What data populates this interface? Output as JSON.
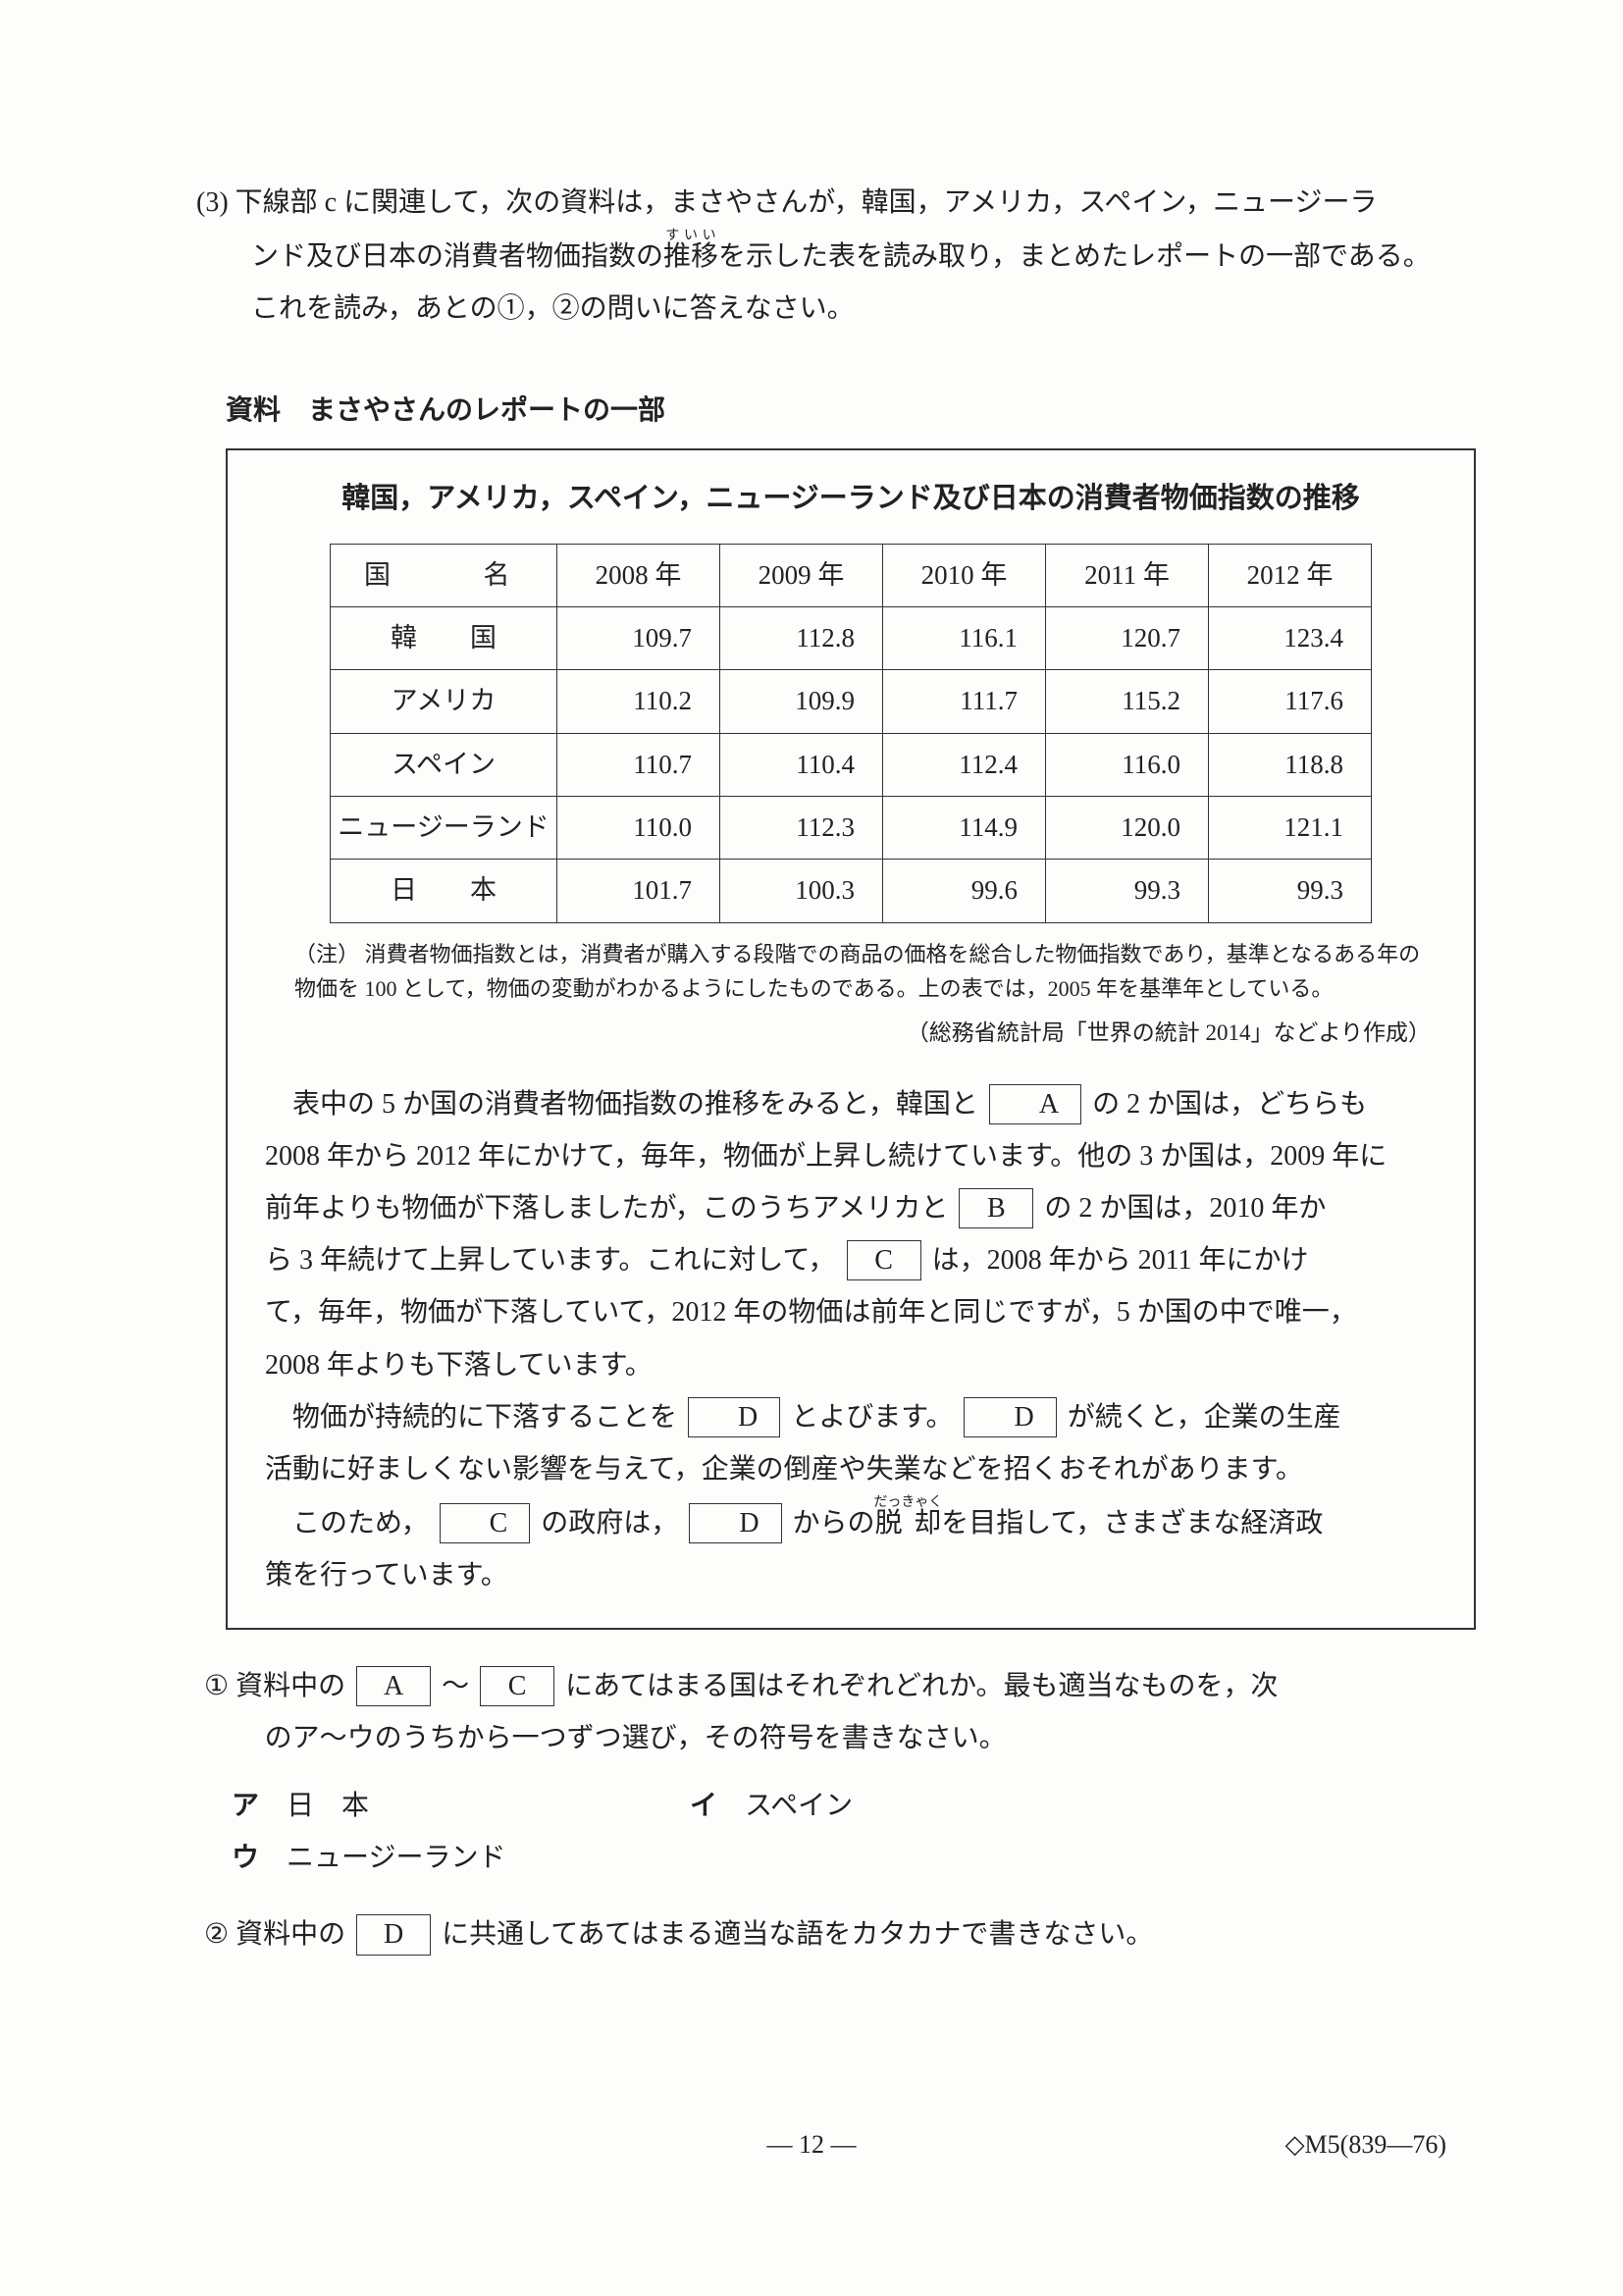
{
  "question": {
    "number": "(3)",
    "line1": "下線部 c に関連して，次の資料は，まさやさんが，韓国，アメリカ，スペイン，ニュージーラ",
    "line2_a": "ンド及び日本の消費者物価指数の",
    "line2_ruby": "推移",
    "line2_rt": "すいい",
    "line2_b": "を示した表を読み取り，まとめたレポートの一部である。",
    "line3": "これを読み，あとの①，②の問いに答えなさい。"
  },
  "material_label": "資料　まさやさんのレポートの一部",
  "report": {
    "title": "韓国，アメリカ，スペイン，ニュージーランド及び日本の消費者物価指数の推移",
    "header_country": "国　　名",
    "years": [
      "2008 年",
      "2009 年",
      "2010 年",
      "2011 年",
      "2012 年"
    ],
    "rows": [
      {
        "name": "韓　　国",
        "vals": [
          "109.7",
          "112.8",
          "116.1",
          "120.7",
          "123.4"
        ]
      },
      {
        "name": "アメリカ",
        "vals": [
          "110.2",
          "109.9",
          "111.7",
          "115.2",
          "117.6"
        ]
      },
      {
        "name": "スペイン",
        "vals": [
          "110.7",
          "110.4",
          "112.4",
          "116.0",
          "118.8"
        ]
      },
      {
        "name": "ニュージーランド",
        "vals": [
          "110.0",
          "112.3",
          "114.9",
          "120.0",
          "121.1"
        ]
      },
      {
        "name": "日　　本",
        "vals": [
          "101.7",
          "100.3",
          "99.6",
          "99.3",
          "99.3"
        ]
      }
    ],
    "note_label": "（注）",
    "note": "消費者物価指数とは，消費者が購入する段階での商品の価格を総合した物価指数であり，基準となるある年の物価を 100 として，物価の変動がわかるようにしたものである。上の表では，2005 年を基準年としている。",
    "source": "（総務省統計局「世界の統計 2014」などより作成）",
    "para": {
      "p1a": "表中の 5 か国の消費者物価指数の推移をみると，韓国と",
      "A": "A",
      "p1b": "の 2 か国は，どちらも",
      "p2": "2008 年から 2012 年にかけて，毎年，物価が上昇し続けています。他の 3 か国は，2009 年に",
      "p3a": "前年よりも物価が下落しましたが，このうちアメリカと",
      "B": "B",
      "p3b": "の 2 か国は，2010 年か",
      "p4a": "ら 3 年続けて上昇しています。これに対して，",
      "C": "C",
      "p4b": "は，2008 年から 2011 年にかけ",
      "p5": "て，毎年，物価が下落していて，2012 年の物価は前年と同じですが，5 か国の中で唯一，",
      "p6": "2008 年よりも下落しています。",
      "p7a": "物価が持続的に下落することを",
      "D": "D",
      "p7b": "とよびます。",
      "p7c": "が続くと，企業の生産",
      "p8": "活動に好ましくない影響を与えて，企業の倒産や失業などを招くおそれがあります。",
      "p9a": "このため，",
      "p9b": "の政府は，",
      "p9c": "からの",
      "p9_ruby": "脱 却",
      "p9_rt": "だっきゃく",
      "p9d": "を目指して，さまざまな経済政",
      "p10": "策を行っています。"
    }
  },
  "sub1": {
    "num": "①",
    "line1a": "資料中の",
    "line1b": "～",
    "line1c": "にあてはまる国はそれぞれどれか。最も適当なものを，次",
    "line2": "のア～ウのうちから一つずつ選び，その符号を書きなさい。"
  },
  "choices": {
    "a_mark": "ア",
    "a": "日　本",
    "b_mark": "イ",
    "b": "スペイン",
    "c_mark": "ウ",
    "c": "ニュージーランド"
  },
  "sub2": {
    "num": "②",
    "a": "資料中の",
    "b": "に共通してあてはまる適当な語をカタカナで書きなさい。"
  },
  "pagenum": "— 12 —",
  "docid": "◇M5(839—76)"
}
